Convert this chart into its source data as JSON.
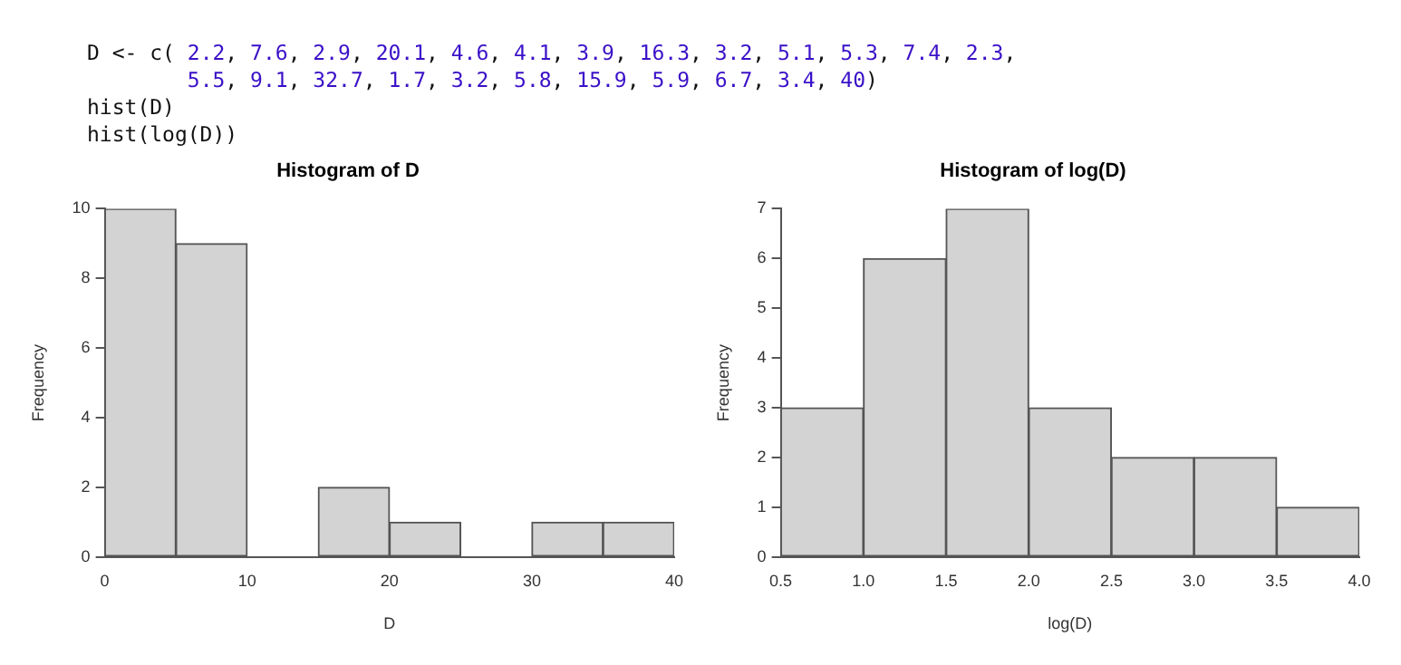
{
  "chart_data": [
    {
      "type": "other",
      "annotations": [
        "D <- c( 2.2, 7.6, 2.9, 20.1, 4.6, 4.1, 3.9, 16.3, 3.2, 5.1, 5.3, 7.4, 2.3,",
        "        5.5, 9.1, 32.7, 1.7, 3.2, 5.8, 15.9, 5.9, 6.7, 3.4, 40)",
        "hist(D)",
        "hist(log(D))"
      ]
    },
    {
      "type": "histogram",
      "title": "Histogram of D",
      "xlabel": "D",
      "ylabel": "Frequency",
      "bins": [
        0,
        5,
        10,
        15,
        20,
        25,
        30,
        35,
        40
      ],
      "values": [
        10,
        9,
        0,
        2,
        1,
        0,
        1,
        1
      ],
      "color": "#d3d3d3",
      "xlim": [
        0,
        40
      ],
      "xticks": [
        0,
        10,
        20,
        30,
        40
      ],
      "ylim": [
        0,
        10
      ],
      "yticks": [
        0,
        2,
        4,
        6,
        8,
        10
      ],
      "grid": false,
      "legend": false
    },
    {
      "type": "histogram",
      "title": "Histogram of log(D)",
      "xlabel": "log(D)",
      "ylabel": "Frequency",
      "bins": [
        0.5,
        1.0,
        1.5,
        2.0,
        2.5,
        3.0,
        3.5,
        4.0
      ],
      "values": [
        3,
        6,
        7,
        3,
        2,
        2,
        1
      ],
      "color": "#d3d3d3",
      "xlim": [
        0.5,
        4.0
      ],
      "xticks": [
        {
          "value": 0.5,
          "label": "0.5"
        },
        {
          "value": 1.0,
          "label": "1.0"
        },
        {
          "value": 1.5,
          "label": "1.5"
        },
        {
          "value": 2.0,
          "label": "2.0"
        },
        {
          "value": 2.5,
          "label": "2.5"
        },
        {
          "value": 3.0,
          "label": "3.0"
        },
        {
          "value": 3.5,
          "label": "3.5"
        },
        {
          "value": 4.0,
          "label": "4.0"
        }
      ],
      "ylim": [
        0,
        7
      ],
      "yticks": [
        0,
        1,
        2,
        3,
        4,
        5,
        6,
        7
      ],
      "grid": false,
      "legend": false
    }
  ]
}
